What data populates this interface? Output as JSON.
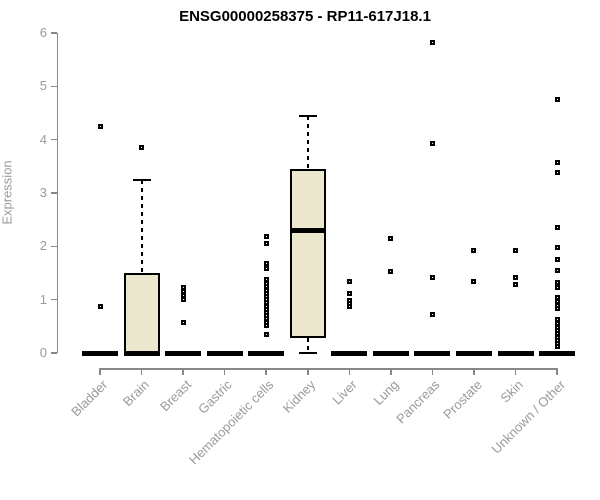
{
  "title": "ENSG00000258375 - RP11-617J18.1",
  "colors": {
    "box_fill": "#ece8cd",
    "box_border": "#000000",
    "axis": "#888888",
    "tick_label": "#9a9a9a",
    "background": "#ffffff"
  },
  "chart_data": {
    "type": "boxplot",
    "title": "ENSG00000258375 - RP11-617J18.1",
    "xlabel": "",
    "ylabel": "Expression",
    "ylim": [
      0,
      6
    ],
    "yticks": [
      "0",
      "1",
      "2",
      "3",
      "4",
      "5",
      "6"
    ],
    "grid": "off",
    "legend": "none",
    "categories": [
      "Bladder",
      "Brain",
      "Breast",
      "Gastric",
      "Hematopoietic cells",
      "Kidney",
      "Liver",
      "Lung",
      "Pancreas",
      "Prostate",
      "Skin",
      "Unknown / Other"
    ],
    "series": [
      {
        "category": "Bladder",
        "q1": 0,
        "median": 0,
        "q3": 0,
        "whisker_low": 0,
        "whisker_high": 0,
        "outliers": [
          4.25,
          0.87
        ]
      },
      {
        "category": "Brain",
        "q1": 0,
        "median": 0,
        "q3": 1.5,
        "whisker_low": 0,
        "whisker_high": 3.25,
        "outliers": [
          3.85
        ]
      },
      {
        "category": "Breast",
        "q1": 0,
        "median": 0,
        "q3": 0,
        "whisker_low": 0,
        "whisker_high": 0,
        "outliers": [
          1.22,
          1.15,
          1.07,
          1.0,
          0.58
        ]
      },
      {
        "category": "Gastric",
        "q1": 0,
        "median": 0,
        "q3": 0,
        "whisker_low": 0,
        "whisker_high": 0,
        "outliers": []
      },
      {
        "category": "Hematopoietic cells",
        "q1": 0,
        "median": 0,
        "q3": 0,
        "whisker_low": 0,
        "whisker_high": 0,
        "outliers": [
          2.18,
          2.06,
          1.68,
          1.58,
          1.37,
          1.3,
          1.24,
          1.18,
          1.12,
          1.06,
          1.0,
          0.94,
          0.88,
          0.82,
          0.76,
          0.7,
          0.64,
          0.58,
          0.52,
          0.35
        ]
      },
      {
        "category": "Kidney",
        "q1": 0.28,
        "median": 2.3,
        "q3": 3.45,
        "whisker_low": 0,
        "whisker_high": 4.45,
        "outliers": []
      },
      {
        "category": "Liver",
        "q1": 0,
        "median": 0,
        "q3": 0,
        "whisker_low": 0,
        "whisker_high": 0,
        "outliers": [
          1.35,
          1.12,
          0.99,
          0.92,
          0.87
        ]
      },
      {
        "category": "Lung",
        "q1": 0,
        "median": 0,
        "q3": 0,
        "whisker_low": 0,
        "whisker_high": 0,
        "outliers": [
          2.15,
          1.52
        ]
      },
      {
        "category": "Pancreas",
        "q1": 0,
        "median": 0,
        "q3": 0,
        "whisker_low": 0,
        "whisker_high": 0,
        "outliers": [
          5.82,
          3.92,
          1.41,
          0.73
        ]
      },
      {
        "category": "Prostate",
        "q1": 0,
        "median": 0,
        "q3": 0,
        "whisker_low": 0,
        "whisker_high": 0,
        "outliers": [
          1.93,
          1.35
        ]
      },
      {
        "category": "Skin",
        "q1": 0,
        "median": 0,
        "q3": 0,
        "whisker_low": 0,
        "whisker_high": 0,
        "outliers": [
          1.93,
          1.41,
          1.28
        ]
      },
      {
        "category": "Unknown / Other",
        "q1": 0,
        "median": 0,
        "q3": 0,
        "whisker_low": 0,
        "whisker_high": 0,
        "outliers": [
          4.75,
          3.57,
          3.38,
          2.35,
          1.97,
          1.76,
          1.55,
          1.32,
          1.22,
          1.05,
          0.97,
          0.9,
          0.84,
          0.62,
          0.55,
          0.48,
          0.42,
          0.36,
          0.3,
          0.24,
          0.18,
          0.12
        ]
      }
    ]
  }
}
